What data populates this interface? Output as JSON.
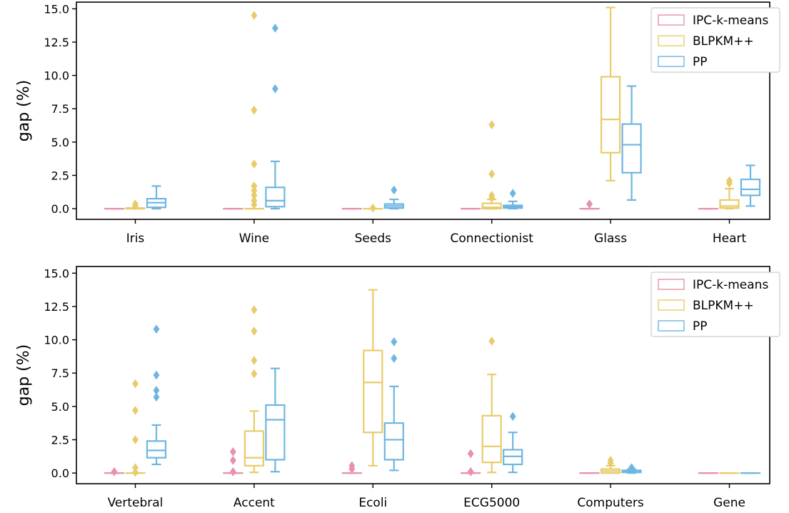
{
  "chart_data": [
    {
      "type": "box",
      "ylabel": "gap (%)",
      "ylim": [
        -0.8,
        15.5
      ],
      "yticks": [
        0.0,
        2.5,
        5.0,
        7.5,
        10.0,
        12.5,
        15.0
      ],
      "ytick_labels": [
        "0.0",
        "2.5",
        "5.0",
        "7.5",
        "10.0",
        "12.5",
        "15.0"
      ],
      "categories": [
        "Iris",
        "Wine",
        "Seeds",
        "Connectionist",
        "Glass",
        "Heart"
      ],
      "legend_position": "top-right",
      "series": [
        {
          "name": "IPC-k-means",
          "color": "#e891ab",
          "boxes": [
            {
              "q1": 0.0,
              "median": 0.0,
              "q3": 0.0,
              "lo": 0.0,
              "hi": 0.0,
              "outliers": []
            },
            {
              "q1": 0.0,
              "median": 0.0,
              "q3": 0.0,
              "lo": 0.0,
              "hi": 0.0,
              "outliers": []
            },
            {
              "q1": 0.0,
              "median": 0.0,
              "q3": 0.0,
              "lo": 0.0,
              "hi": 0.0,
              "outliers": []
            },
            {
              "q1": 0.0,
              "median": 0.0,
              "q3": 0.0,
              "lo": 0.0,
              "hi": 0.0,
              "outliers": []
            },
            {
              "q1": 0.0,
              "median": 0.0,
              "q3": 0.0,
              "lo": 0.0,
              "hi": 0.0,
              "outliers": [
                0.35
              ]
            },
            {
              "q1": 0.0,
              "median": 0.0,
              "q3": 0.0,
              "lo": 0.0,
              "hi": 0.0,
              "outliers": []
            }
          ]
        },
        {
          "name": "BLPKM++",
          "color": "#e8cc6a",
          "boxes": [
            {
              "q1": 0.0,
              "median": 0.0,
              "q3": 0.05,
              "lo": 0.0,
              "hi": 0.05,
              "outliers": [
                0.2,
                0.35
              ]
            },
            {
              "q1": 0.0,
              "median": 0.0,
              "q3": 0.0,
              "lo": 0.0,
              "hi": 0.0,
              "outliers": [
                0.3,
                0.6,
                1.0,
                1.35,
                1.7,
                3.35,
                7.4,
                14.5
              ]
            },
            {
              "q1": 0.0,
              "median": 0.0,
              "q3": 0.0,
              "lo": 0.0,
              "hi": 0.0,
              "outliers": [
                0.05
              ]
            },
            {
              "q1": 0.0,
              "median": 0.1,
              "q3": 0.4,
              "lo": 0.0,
              "hi": 0.7,
              "outliers": [
                0.8,
                1.0,
                2.6,
                6.3
              ]
            },
            {
              "q1": 4.2,
              "median": 6.7,
              "q3": 9.9,
              "lo": 2.1,
              "hi": 15.1,
              "outliers": []
            },
            {
              "q1": 0.05,
              "median": 0.2,
              "q3": 0.65,
              "lo": 0.0,
              "hi": 1.5,
              "outliers": [
                1.9,
                2.1
              ]
            }
          ]
        },
        {
          "name": "PP",
          "color": "#6db6e2",
          "boxes": [
            {
              "q1": 0.1,
              "median": 0.45,
              "q3": 0.75,
              "lo": 0.0,
              "hi": 1.7,
              "outliers": []
            },
            {
              "q1": 0.15,
              "median": 0.6,
              "q3": 1.6,
              "lo": 0.0,
              "hi": 3.55,
              "outliers": [
                9.0,
                13.55
              ]
            },
            {
              "q1": 0.05,
              "median": 0.2,
              "q3": 0.35,
              "lo": 0.0,
              "hi": 0.7,
              "outliers": [
                1.4
              ]
            },
            {
              "q1": 0.05,
              "median": 0.15,
              "q3": 0.25,
              "lo": 0.0,
              "hi": 0.55,
              "outliers": [
                1.15
              ]
            },
            {
              "q1": 2.7,
              "median": 4.8,
              "q3": 6.35,
              "lo": 0.65,
              "hi": 9.2,
              "outliers": []
            },
            {
              "q1": 1.0,
              "median": 1.45,
              "q3": 2.2,
              "lo": 0.2,
              "hi": 3.25,
              "outliers": []
            }
          ]
        }
      ]
    },
    {
      "type": "box",
      "ylabel": "gap (%)",
      "ylim": [
        -0.8,
        15.5
      ],
      "yticks": [
        0.0,
        2.5,
        5.0,
        7.5,
        10.0,
        12.5,
        15.0
      ],
      "ytick_labels": [
        "0.0",
        "2.5",
        "5.0",
        "7.5",
        "10.0",
        "12.5",
        "15.0"
      ],
      "categories": [
        "Vertebral",
        "Accent",
        "Ecoli",
        "ECG5000",
        "Computers",
        "Gene"
      ],
      "legend_position": "top-right",
      "series": [
        {
          "name": "IPC-k-means",
          "color": "#e891ab",
          "boxes": [
            {
              "q1": 0.0,
              "median": 0.0,
              "q3": 0.0,
              "lo": 0.0,
              "hi": 0.0,
              "outliers": [
                0.1
              ]
            },
            {
              "q1": 0.0,
              "median": 0.0,
              "q3": 0.0,
              "lo": 0.0,
              "hi": 0.0,
              "outliers": [
                0.1,
                0.95,
                1.6
              ]
            },
            {
              "q1": 0.0,
              "median": 0.0,
              "q3": 0.0,
              "lo": 0.0,
              "hi": 0.0,
              "outliers": [
                0.3,
                0.55
              ]
            },
            {
              "q1": 0.0,
              "median": 0.0,
              "q3": 0.0,
              "lo": 0.0,
              "hi": 0.0,
              "outliers": [
                0.1,
                1.45
              ]
            },
            {
              "q1": 0.0,
              "median": 0.0,
              "q3": 0.0,
              "lo": 0.0,
              "hi": 0.0,
              "outliers": []
            },
            {
              "q1": 0.0,
              "median": 0.0,
              "q3": 0.0,
              "lo": 0.0,
              "hi": 0.0,
              "outliers": []
            }
          ]
        },
        {
          "name": "BLPKM++",
          "color": "#e8cc6a",
          "boxes": [
            {
              "q1": 0.0,
              "median": 0.0,
              "q3": 0.0,
              "lo": 0.0,
              "hi": 0.0,
              "outliers": [
                0.05,
                0.4,
                2.5,
                4.7,
                6.7
              ]
            },
            {
              "q1": 0.55,
              "median": 1.15,
              "q3": 3.15,
              "lo": 0.05,
              "hi": 4.65,
              "outliers": [
                7.45,
                8.45,
                10.65,
                12.25
              ]
            },
            {
              "q1": 3.05,
              "median": 6.8,
              "q3": 9.2,
              "lo": 0.55,
              "hi": 13.75,
              "outliers": []
            },
            {
              "q1": 0.8,
              "median": 2.0,
              "q3": 4.3,
              "lo": 0.05,
              "hi": 7.4,
              "outliers": [
                9.9
              ]
            },
            {
              "q1": 0.0,
              "median": 0.15,
              "q3": 0.3,
              "lo": 0.0,
              "hi": 0.55,
              "outliers": [
                0.75,
                0.95
              ]
            },
            {
              "q1": 0.0,
              "median": 0.0,
              "q3": 0.0,
              "lo": 0.0,
              "hi": 0.0,
              "outliers": []
            }
          ]
        },
        {
          "name": "PP",
          "color": "#6db6e2",
          "boxes": [
            {
              "q1": 1.15,
              "median": 1.7,
              "q3": 2.4,
              "lo": 0.65,
              "hi": 3.6,
              "outliers": [
                5.7,
                6.2,
                7.35,
                10.8
              ]
            },
            {
              "q1": 1.0,
              "median": 4.0,
              "q3": 5.1,
              "lo": 0.1,
              "hi": 7.85,
              "outliers": []
            },
            {
              "q1": 1.0,
              "median": 2.5,
              "q3": 3.75,
              "lo": 0.2,
              "hi": 6.5,
              "outliers": [
                8.6,
                9.85
              ]
            },
            {
              "q1": 0.65,
              "median": 1.25,
              "q3": 1.75,
              "lo": 0.05,
              "hi": 3.05,
              "outliers": [
                4.25
              ]
            },
            {
              "q1": 0.05,
              "median": 0.15,
              "q3": 0.2,
              "lo": 0.0,
              "hi": 0.3,
              "outliers": [
                0.4
              ]
            },
            {
              "q1": 0.0,
              "median": 0.0,
              "q3": 0.0,
              "lo": 0.0,
              "hi": 0.0,
              "outliers": []
            }
          ]
        }
      ]
    }
  ]
}
